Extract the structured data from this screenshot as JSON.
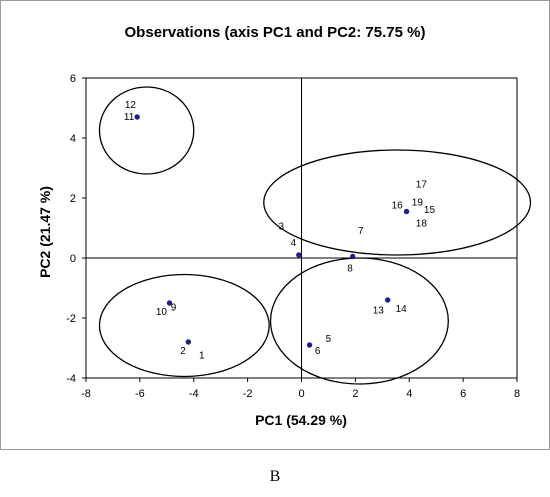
{
  "figure": {
    "panel_label": "B"
  },
  "chart_data": {
    "type": "scatter",
    "title": "Observations (axis PC1 and PC2: 75.75 %)",
    "xlabel": "PC1 (54.29 %)",
    "ylabel": "PC2 (21.47 %)",
    "xlim": [
      -8,
      8
    ],
    "ylim": [
      -4,
      6
    ],
    "x_ticks": [
      "-8",
      "-6",
      "-4",
      "-2",
      "0",
      "2",
      "4",
      "6",
      "8"
    ],
    "y_ticks": [
      "-4",
      "-2",
      "0",
      "2",
      "4",
      "6"
    ],
    "grid": false,
    "legend": "none",
    "marker_color": "#1f1f8c",
    "points": [
      {
        "x": -6.1,
        "y": 4.7
      },
      {
        "x": -4.9,
        "y": -1.5
      },
      {
        "x": -4.2,
        "y": -2.8
      },
      {
        "x": -0.1,
        "y": 0.1
      },
      {
        "x": 0.3,
        "y": -2.9
      },
      {
        "x": 1.9,
        "y": 0.05
      },
      {
        "x": 3.2,
        "y": -1.4
      },
      {
        "x": 3.9,
        "y": 1.55
      }
    ],
    "labels": [
      {
        "text": "12",
        "x": -6.35,
        "y": 5.0
      },
      {
        "text": "11",
        "x": -6.4,
        "y": 4.6
      },
      {
        "text": "10",
        "x": -5.2,
        "y": -1.9
      },
      {
        "text": "9",
        "x": -4.75,
        "y": -1.75
      },
      {
        "text": "2",
        "x": -4.4,
        "y": -3.2
      },
      {
        "text": "1",
        "x": -3.7,
        "y": -3.35
      },
      {
        "text": "3",
        "x": -0.75,
        "y": 0.95
      },
      {
        "text": "4",
        "x": -0.3,
        "y": 0.4
      },
      {
        "text": "7",
        "x": 2.2,
        "y": 0.8
      },
      {
        "text": "8",
        "x": 1.8,
        "y": -0.45
      },
      {
        "text": "16",
        "x": 3.55,
        "y": 1.65
      },
      {
        "text": "17",
        "x": 4.45,
        "y": 2.35
      },
      {
        "text": "19",
        "x": 4.3,
        "y": 1.75
      },
      {
        "text": "15",
        "x": 4.75,
        "y": 1.5
      },
      {
        "text": "18",
        "x": 4.45,
        "y": 1.05
      },
      {
        "text": "13",
        "x": 2.85,
        "y": -1.85
      },
      {
        "text": "14",
        "x": 3.7,
        "y": -1.8
      },
      {
        "text": "5",
        "x": 1.0,
        "y": -2.8
      },
      {
        "text": "6",
        "x": 0.6,
        "y": -3.2
      }
    ],
    "ellipses": [
      {
        "cx": -5.75,
        "cy": 4.25,
        "rx": 1.75,
        "ry": 1.45
      },
      {
        "cx": -4.35,
        "cy": -2.25,
        "rx": 3.15,
        "ry": 1.7
      },
      {
        "cx": 2.15,
        "cy": -2.1,
        "rx": 3.3,
        "ry": 2.1
      },
      {
        "cx": 3.55,
        "cy": 1.85,
        "rx": 4.95,
        "ry": 1.75
      }
    ]
  }
}
